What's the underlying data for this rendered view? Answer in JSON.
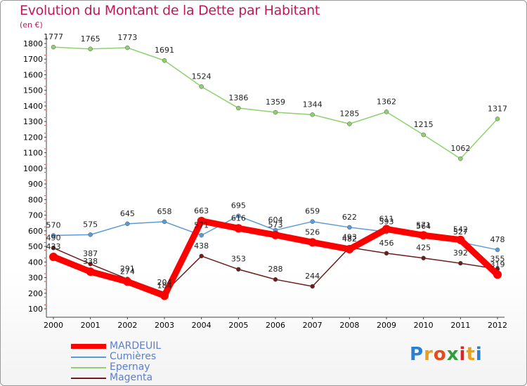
{
  "chart_data": {
    "type": "line",
    "title": "Evolution du Montant de la Dette par Habitant",
    "unit": "(en €)",
    "x": [
      "2000",
      "2001",
      "2002",
      "2003",
      "2004",
      "2005",
      "2006",
      "2007",
      "2008",
      "2009",
      "2010",
      "2011",
      "2012"
    ],
    "ylim": [
      100,
      1800
    ],
    "yticks": [
      100,
      200,
      300,
      400,
      500,
      600,
      700,
      800,
      900,
      1000,
      1100,
      1200,
      1300,
      1400,
      1500,
      1600,
      1700,
      1800
    ],
    "grid": false,
    "legend_position": "bottom-left",
    "series": [
      {
        "name": "MARDEUIL",
        "color": "#ff0000",
        "values": [
          433,
          338,
          274,
          184,
          663,
          616,
          573,
          526,
          482,
          611,
          571,
          542,
          319
        ]
      },
      {
        "name": "Cumières",
        "color": "#5b9bd5",
        "values": [
          570,
          575,
          645,
          658,
          571,
          695,
          604,
          659,
          622,
          593,
          564,
          527,
          478
        ]
      },
      {
        "name": "Epernay",
        "color": "#8fd16e",
        "values": [
          1777,
          1765,
          1773,
          1691,
          1524,
          1386,
          1359,
          1344,
          1285,
          1362,
          1215,
          1062,
          1317
        ]
      },
      {
        "name": "Magenta",
        "color": "#6b1d1d",
        "values": [
          490,
          387,
          291,
          204,
          438,
          353,
          288,
          244,
          493,
          456,
          425,
          392,
          355
        ]
      }
    ]
  },
  "legend": {
    "items": [
      "MARDEUIL",
      "Cumières",
      "Epernay",
      "Magenta"
    ]
  },
  "logo": {
    "text": "Proxiti"
  }
}
